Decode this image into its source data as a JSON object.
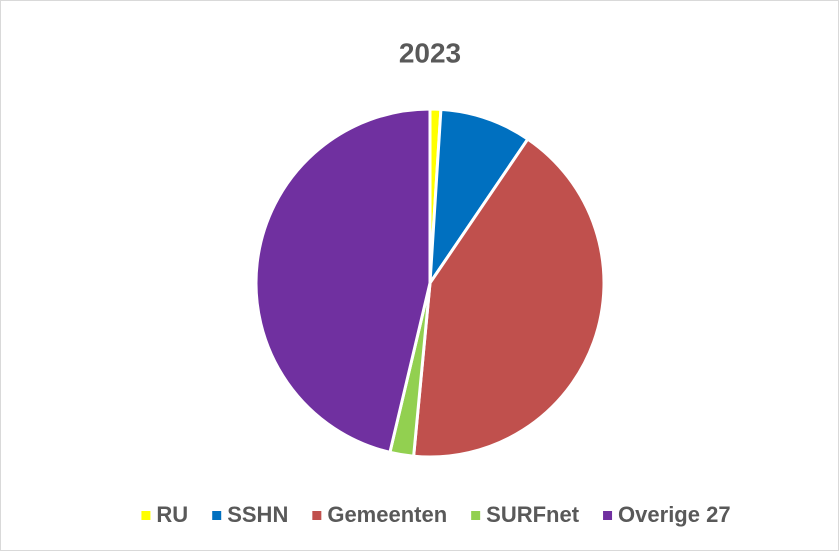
{
  "chart_data": {
    "type": "pie",
    "title": "2023",
    "categories": [
      "RU",
      "SSHN",
      "Gemeenten",
      "SURFnet",
      "Overige 27"
    ],
    "values": [
      1,
      8.5,
      42,
      2.2,
      46.3
    ],
    "colors": [
      "#ffff00",
      "#0070c0",
      "#c0504d",
      "#92d050",
      "#7030a0"
    ],
    "legend": "bottom"
  }
}
